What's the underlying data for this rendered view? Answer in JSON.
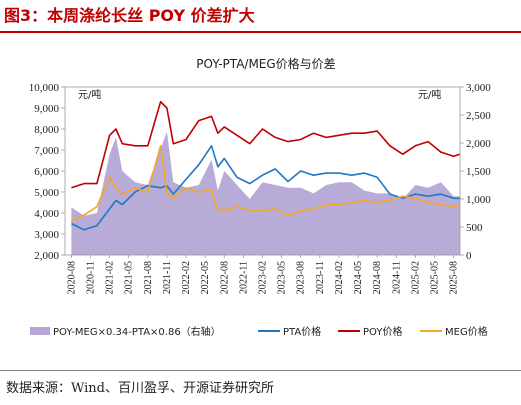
{
  "figure": {
    "title": "图3：本周涤纶长丝 POY 价差扩大",
    "source": "数据来源：Wind、百川盈孚、开源证券研究所"
  },
  "colors": {
    "title_red": "#c00000",
    "spread_fill": "#b4a7d6",
    "pta_line": "#1f77c4",
    "poy_line": "#c00000",
    "meg_line": "#f5a623"
  },
  "chart_data": {
    "type": "line",
    "title": "POY-PTA/MEG价格与价差",
    "left_unit": "元/吨",
    "right_unit": "元/吨",
    "left_axis": {
      "min": 2000,
      "max": 10000,
      "ticks": [
        "2,000",
        "3,000",
        "4,000",
        "5,000",
        "6,000",
        "7,000",
        "8,000",
        "9,000",
        "10,000"
      ]
    },
    "right_axis": {
      "min": 0,
      "max": 3000,
      "ticks": [
        "0",
        "500",
        "1,000",
        "1,500",
        "2,000",
        "2,500",
        "3,000"
      ]
    },
    "x_ticks": [
      "2020-08",
      "2020-11",
      "2021-02",
      "2021-05",
      "2021-08",
      "2021-11",
      "2022-02",
      "2022-05",
      "2022-08",
      "2022-11",
      "2023-02",
      "2023-05",
      "2023-08",
      "2023-11",
      "2024-02",
      "2024-05",
      "2024-08",
      "2024-11",
      "2025-02",
      "2025-05",
      "2025-08"
    ],
    "x": [
      "2020-08",
      "2020-10",
      "2020-12",
      "2021-02",
      "2021-03",
      "2021-04",
      "2021-06",
      "2021-08",
      "2021-10",
      "2021-11",
      "2021-12",
      "2022-02",
      "2022-04",
      "2022-06",
      "2022-07",
      "2022-08",
      "2022-10",
      "2022-12",
      "2023-02",
      "2023-04",
      "2023-06",
      "2023-08",
      "2023-10",
      "2023-12",
      "2024-02",
      "2024-04",
      "2024-06",
      "2024-08",
      "2024-10",
      "2024-12",
      "2025-02",
      "2025-04",
      "2025-06",
      "2025-08",
      "2025-09"
    ],
    "series": [
      {
        "name": "POY-MEG×0.34-PTA×0.86（右轴）",
        "axis": "right",
        "kind": "area",
        "values": [
          850,
          700,
          750,
          1800,
          2100,
          1500,
          1300,
          1250,
          1900,
          2200,
          1300,
          1200,
          1250,
          1700,
          1150,
          1500,
          1250,
          1000,
          1300,
          1250,
          1200,
          1200,
          1100,
          1250,
          1300,
          1300,
          1150,
          1100,
          1100,
          1000,
          1250,
          1200,
          1300,
          1050,
          1050
        ]
      },
      {
        "name": "PTA价格",
        "axis": "left",
        "kind": "line",
        "values": [
          3500,
          3200,
          3400,
          4200,
          4600,
          4400,
          5000,
          5300,
          5200,
          5300,
          4900,
          5600,
          6300,
          7200,
          6200,
          6600,
          5700,
          5400,
          5800,
          6100,
          5500,
          6000,
          5800,
          5900,
          5900,
          5800,
          5900,
          5700,
          4900,
          4700,
          4900,
          4800,
          4900,
          4700,
          4700
        ]
      },
      {
        "name": "POY价格",
        "axis": "left",
        "kind": "line",
        "values": [
          5200,
          5400,
          5400,
          7700,
          8000,
          7300,
          7200,
          7200,
          9300,
          9000,
          7300,
          7500,
          8400,
          8600,
          7800,
          8100,
          7700,
          7300,
          8000,
          7600,
          7400,
          7500,
          7800,
          7600,
          7700,
          7800,
          7800,
          7900,
          7200,
          6800,
          7200,
          7400,
          6900,
          6700,
          6800
        ]
      },
      {
        "name": "MEG价格",
        "axis": "left",
        "kind": "line",
        "values": [
          3600,
          3900,
          4300,
          5700,
          5200,
          4900,
          5200,
          5000,
          7200,
          5000,
          4700,
          5200,
          5000,
          5100,
          4100,
          4100,
          4300,
          4100,
          4100,
          4200,
          3900,
          4100,
          4200,
          4400,
          4400,
          4500,
          4600,
          4500,
          4600,
          4800,
          4700,
          4500,
          4400,
          4300,
          4400
        ]
      }
    ],
    "legend": {
      "placement": "bottom"
    }
  }
}
